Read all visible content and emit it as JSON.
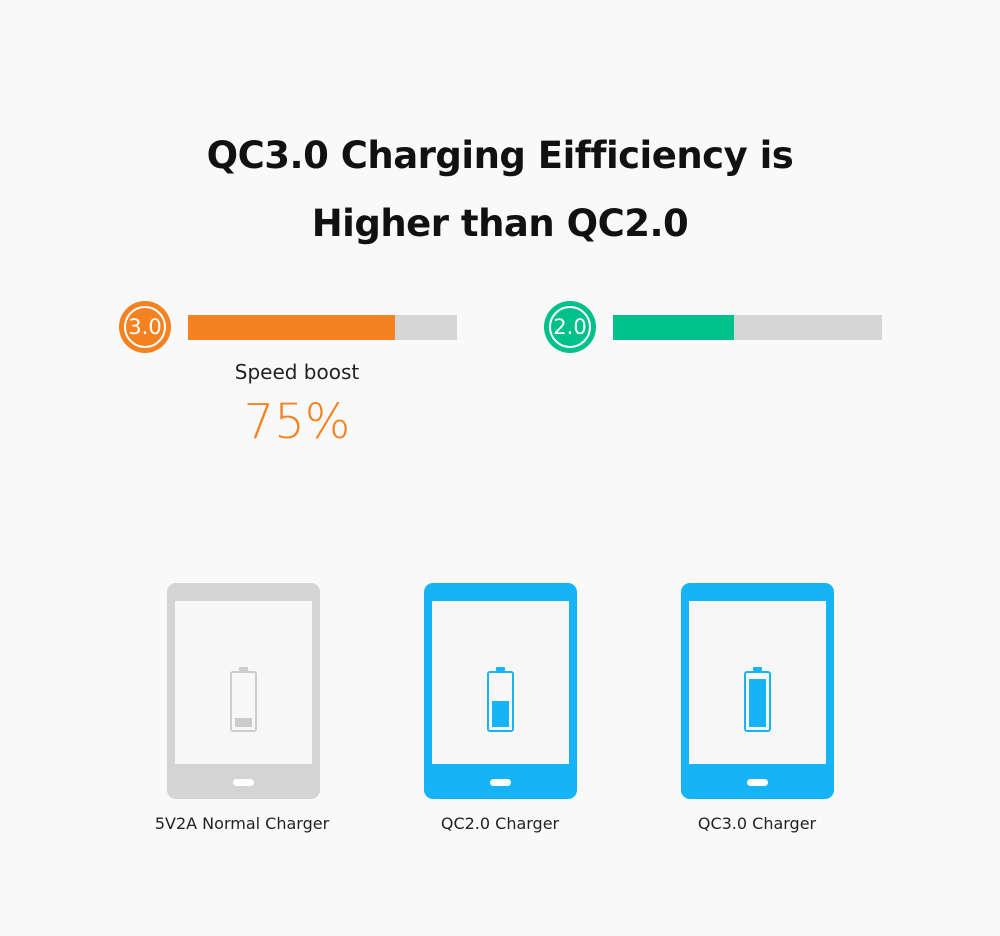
{
  "heading": {
    "line1": "QC3.0 Charging Eifficiency is",
    "line2": "Higher than QC2.0"
  },
  "comparison": [
    {
      "badge": "3.0",
      "fill_fraction": 0.77,
      "color": "#f58220"
    },
    {
      "badge": "2.0",
      "fill_fraction": 0.45,
      "color": "#00c08b"
    }
  ],
  "boost": {
    "label": "Speed boost",
    "value": "75%"
  },
  "devices": [
    {
      "caption": "5V2A Normal Charger",
      "frame_color": "#d4d4d4",
      "battery_color": "#cccccc",
      "battery_level": 0.15
    },
    {
      "caption": "QC2.0 Charger",
      "frame_color": "#17b4f5",
      "battery_color": "#17b4f5",
      "battery_level": 0.45
    },
    {
      "caption": "QC3.0 Charger",
      "frame_color": "#17b4f5",
      "battery_color": "#17b4f5",
      "battery_level": 0.85
    }
  ]
}
